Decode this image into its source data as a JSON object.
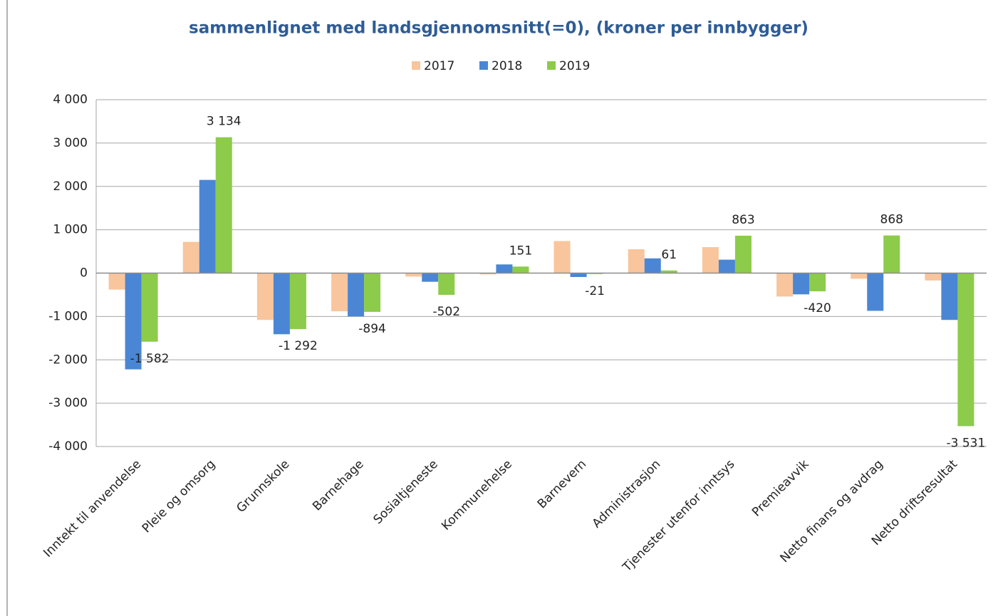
{
  "chart_data": {
    "type": "bar",
    "title": "sammenlignet med landsgjennomsnitt(=0), (kroner per innbygger)",
    "categories": [
      "Inntekt til anvendelse",
      "Pleie og omsorg",
      "Grunnskole",
      "Barnehage",
      "Sosialtjeneste",
      "Kommunehelse",
      "Barnevern",
      "Administrasjon",
      "Tjenester utenfor inntsys",
      "Premieavvik",
      "Netto finans og avdrag",
      "Netto driftsresultat"
    ],
    "series": [
      {
        "name": "2017",
        "color": "#f9c59c",
        "values": [
          -380,
          720,
          -1080,
          -880,
          -80,
          -30,
          740,
          550,
          600,
          -540,
          -130,
          -170
        ]
      },
      {
        "name": "2018",
        "color": "#4a86d4",
        "values": [
          -2220,
          2150,
          -1410,
          -1000,
          -200,
          200,
          -90,
          340,
          310,
          -490,
          -870,
          -1080
        ]
      },
      {
        "name": "2019",
        "color": "#8dcb4b",
        "values": [
          -1582,
          3134,
          -1292,
          -894,
          -502,
          151,
          -21,
          61,
          863,
          -420,
          868,
          -3531
        ],
        "value_labels": [
          "-1 582",
          "3 134",
          "-1 292",
          "-894",
          "-502",
          "151",
          "-21",
          "61",
          "863",
          "-420",
          "868",
          "-3 531"
        ]
      }
    ],
    "ylim": [
      -4000,
      4000
    ],
    "yticks": [
      {
        "value": -4000,
        "label": "-4 000"
      },
      {
        "value": -3000,
        "label": "-3 000"
      },
      {
        "value": -2000,
        "label": "-2 000"
      },
      {
        "value": -1000,
        "label": "-1 000"
      },
      0,
      {
        "value": 1000,
        "label": "1 000"
      },
      {
        "value": 2000,
        "label": "2 000"
      },
      {
        "value": 3000,
        "label": "3 000"
      },
      {
        "value": 4000,
        "label": "4 000"
      }
    ],
    "grid": true,
    "legend": "top"
  }
}
